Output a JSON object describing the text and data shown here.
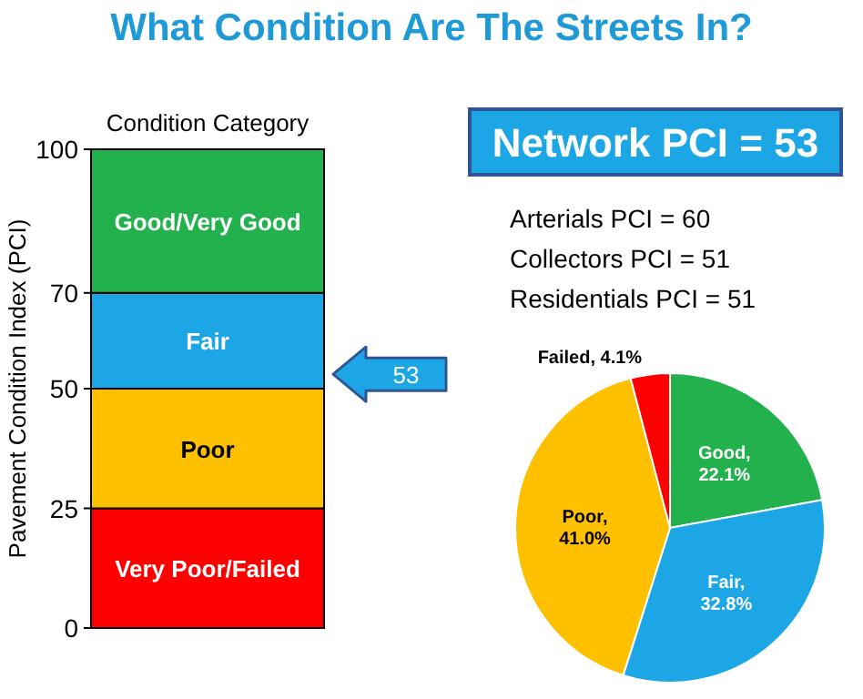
{
  "chart_data": [
    {
      "type": "bar",
      "title": "What Condition Are The Streets In?",
      "subtitle": "Condition Category",
      "ylabel": "Pavement Condition Index (PCI)",
      "categories": [
        null
      ],
      "stacked": true,
      "ylim": [
        0,
        100
      ],
      "yticks": [
        0,
        25,
        50,
        70,
        100
      ],
      "grid": false,
      "series": [
        {
          "name": "Very Poor/Failed",
          "color": "#ff0000",
          "values": [
            25
          ]
        },
        {
          "name": "Poor",
          "color": "#ffc000",
          "values": [
            25
          ]
        },
        {
          "name": "Fair",
          "color": "#1ca6e6",
          "values": [
            20
          ]
        },
        {
          "name": "Good/Very Good",
          "color": "#22b14c",
          "values": [
            30
          ]
        }
      ],
      "annotations": [
        "53"
      ]
    },
    {
      "type": "pie",
      "title": "Network PCI = 53",
      "categories": [
        "Good",
        "Fair",
        "Poor",
        "Failed"
      ],
      "values": [
        22.1,
        32.8,
        41.0,
        4.1
      ],
      "colors": [
        "#22b14c",
        "#1ca6e6",
        "#ffc000",
        "#ff0000"
      ],
      "value_labels": [
        ", 22.1%",
        ", 32.8%",
        ", 41.0%",
        ", 4.1%"
      ],
      "annotations": [
        "Arterials PCI = 60",
        "Collectors PCI = 51",
        "Residentials PCI = 51"
      ]
    }
  ]
}
